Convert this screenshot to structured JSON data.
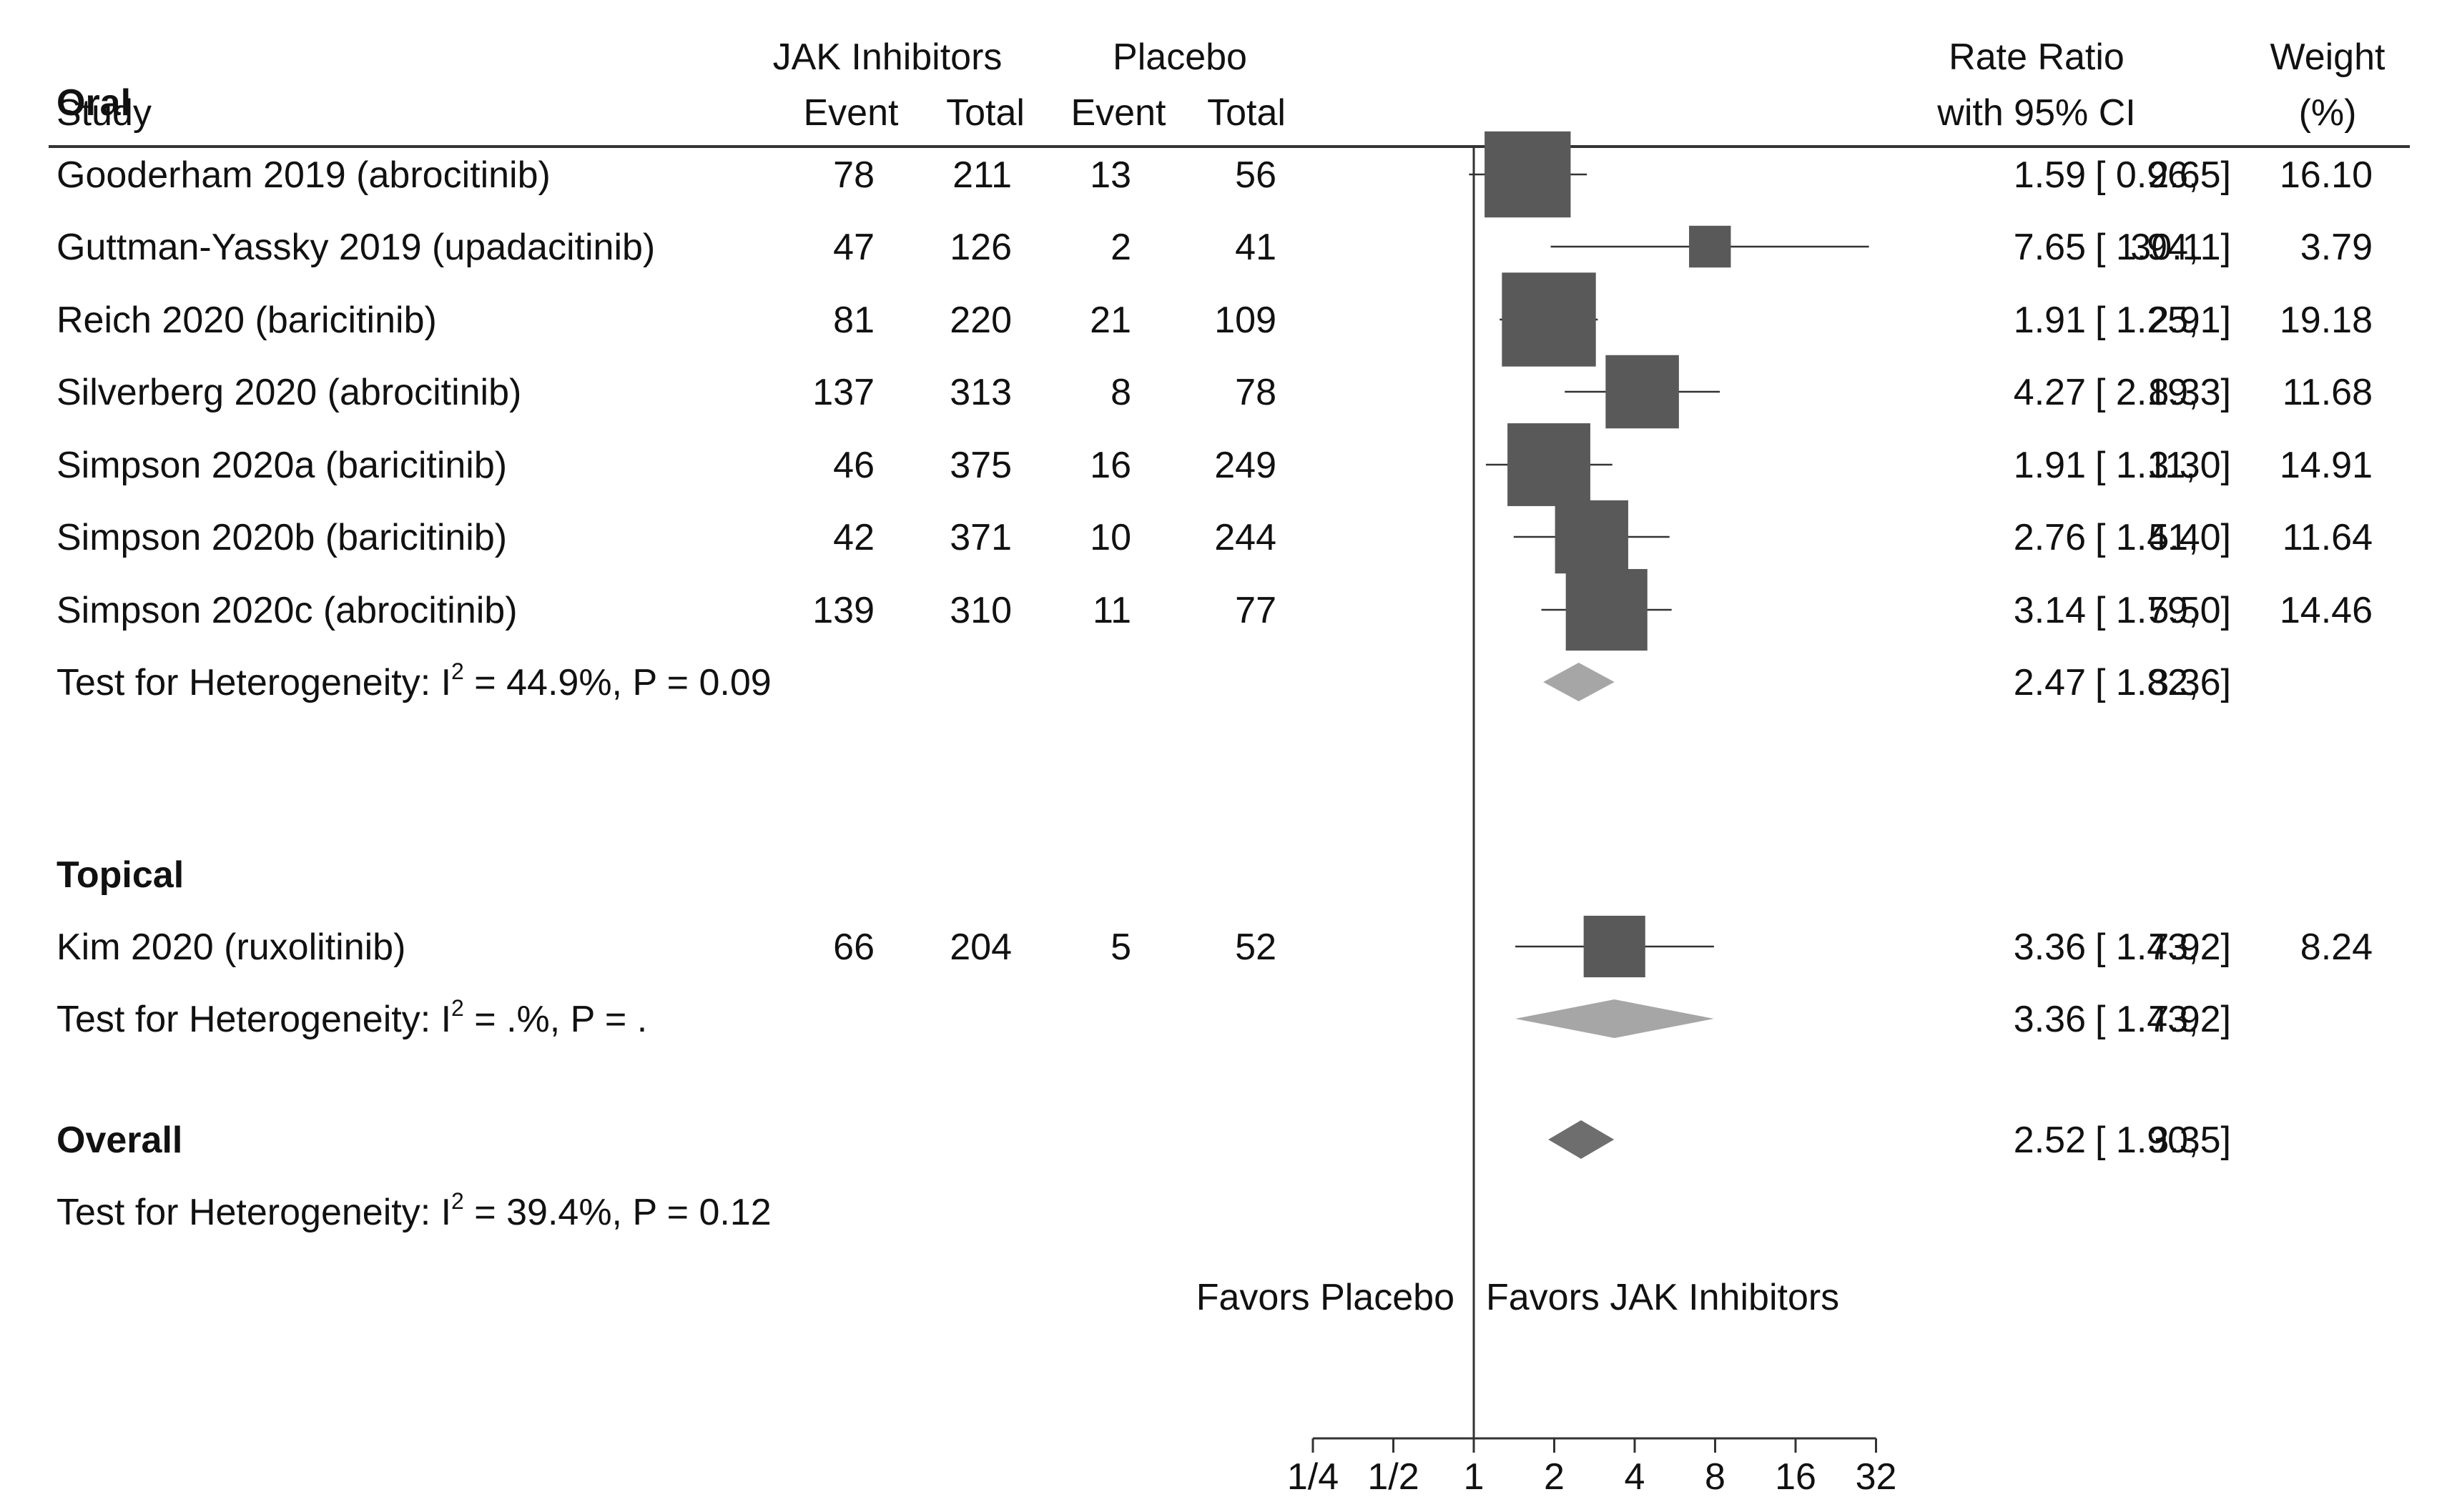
{
  "header": {
    "study": "Study",
    "group1": "JAK Inhibitors",
    "group2": "Placebo",
    "event": "Event",
    "total": "Total",
    "rr1": "Rate Ratio",
    "rr2": "with 95% CI",
    "w1": "Weight",
    "w2": "(%)"
  },
  "colors": {
    "study_box": "#595959",
    "subgroup_diamond": "#a6a6a6",
    "overall_diamond": "#6e6e6e",
    "line": "#333333"
  },
  "favors": {
    "left": "Favors Placebo",
    "right": "Favors JAK Inhibitors"
  },
  "chart_data": {
    "type": "forest",
    "scale": "log2",
    "null_value": 1,
    "xlim": [
      0.25,
      32
    ],
    "ticks": [
      0.25,
      0.5,
      1,
      2,
      4,
      8,
      16,
      32
    ],
    "tick_labels": [
      "1/4",
      "1/2",
      "1",
      "2",
      "4",
      "8",
      "16",
      "32"
    ],
    "groups": [
      {
        "name": "Oral",
        "studies": [
          {
            "name": "Gooderham 2019 (abrocitinib)",
            "jak_event": "78",
            "jak_total": "211",
            "pbo_event": "13",
            "pbo_total": "56",
            "rr": 1.59,
            "lo": 0.96,
            "hi": 2.65,
            "rr_text": "1.59",
            "lo_text": "[ 0.96,",
            "hi_text": "2.65]",
            "weight": "16.10"
          },
          {
            "name": "Guttman-Yassky 2019 (upadacitinib)",
            "jak_event": "47",
            "jak_total": "126",
            "pbo_event": "2",
            "pbo_total": "41",
            "rr": 7.65,
            "lo": 1.94,
            "hi": 30.11,
            "rr_text": "7.65",
            "lo_text": "[ 1.94,",
            "hi_text": "30.11]",
            "weight": "3.79"
          },
          {
            "name": "Reich 2020 (baricitinib)",
            "jak_event": "81",
            "jak_total": "220",
            "pbo_event": "21",
            "pbo_total": "109",
            "rr": 1.91,
            "lo": 1.25,
            "hi": 2.91,
            "rr_text": "1.91",
            "lo_text": "[ 1.25,",
            "hi_text": "2.91]",
            "weight": "19.18"
          },
          {
            "name": "Silverberg 2020 (abrocitinib)",
            "jak_event": "137",
            "jak_total": "313",
            "pbo_event": "8",
            "pbo_total": "78",
            "rr": 4.27,
            "lo": 2.19,
            "hi": 8.33,
            "rr_text": "4.27",
            "lo_text": "[ 2.19,",
            "hi_text": "8.33]",
            "weight": "11.68"
          },
          {
            "name": "Simpson 2020a (baricitinib)",
            "jak_event": "46",
            "jak_total": "375",
            "pbo_event": "16",
            "pbo_total": "249",
            "rr": 1.91,
            "lo": 1.11,
            "hi": 3.3,
            "rr_text": "1.91",
            "lo_text": "[ 1.11,",
            "hi_text": "3.30]",
            "weight": "14.91"
          },
          {
            "name": "Simpson 2020b (baricitinib)",
            "jak_event": "42",
            "jak_total": "371",
            "pbo_event": "10",
            "pbo_total": "244",
            "rr": 2.76,
            "lo": 1.41,
            "hi": 5.4,
            "rr_text": "2.76",
            "lo_text": "[ 1.41,",
            "hi_text": "5.40]",
            "weight": "11.64"
          },
          {
            "name": "Simpson 2020c (abrocitinib)",
            "jak_event": "139",
            "jak_total": "310",
            "pbo_event": "11",
            "pbo_total": "77",
            "rr": 3.14,
            "lo": 1.79,
            "hi": 5.5,
            "rr_text": "3.14",
            "lo_text": "[ 1.79,",
            "hi_text": "5.50]",
            "weight": "14.46"
          }
        ],
        "pooled": {
          "het_prefix": "Test for Heterogeneity: I",
          "het_suffix": " = 44.9%, P = 0.09",
          "rr": 2.47,
          "lo": 1.82,
          "hi": 3.36,
          "rr_text": "2.47",
          "lo_text": "[ 1.82,",
          "hi_text": "3.36]"
        }
      },
      {
        "name": "Topical",
        "studies": [
          {
            "name": "Kim 2020 (ruxolitinib)",
            "jak_event": "66",
            "jak_total": "204",
            "pbo_event": "5",
            "pbo_total": "52",
            "rr": 3.36,
            "lo": 1.43,
            "hi": 7.92,
            "rr_text": "3.36",
            "lo_text": "[ 1.43,",
            "hi_text": "7.92]",
            "weight": "8.24"
          }
        ],
        "pooled": {
          "het_prefix": "Test for Heterogeneity: I",
          "het_suffix": " = .%, P = .",
          "rr": 3.36,
          "lo": 1.43,
          "hi": 7.92,
          "rr_text": "3.36",
          "lo_text": "[ 1.43,",
          "hi_text": "7.92]"
        }
      }
    ],
    "overall": {
      "label": "Overall",
      "het_prefix": "Test for Heterogeneity: I",
      "het_suffix": " = 39.4%, P = 0.12",
      "rr": 2.52,
      "lo": 1.9,
      "hi": 3.35,
      "rr_text": "2.52",
      "lo_text": "[ 1.90,",
      "hi_text": "3.35]"
    }
  }
}
